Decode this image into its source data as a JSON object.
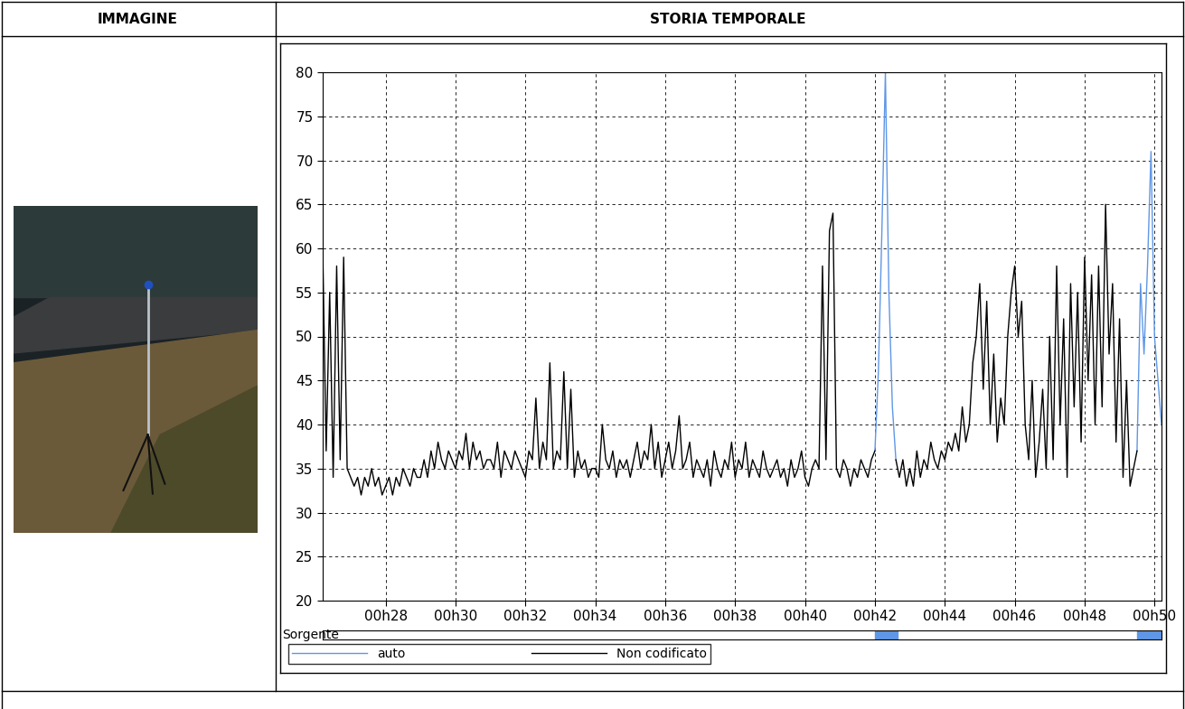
{
  "header": [
    "IMMAGINE",
    "STORIA TEMPORALE"
  ],
  "chart_data": {
    "type": "line",
    "x": [
      26.2,
      26.3,
      26.4,
      26.5,
      26.6,
      26.7,
      26.8,
      26.9,
      27.0,
      27.1,
      27.2,
      27.3,
      27.4,
      27.5,
      27.6,
      27.7,
      27.8,
      27.9,
      28.0,
      28.1,
      28.2,
      28.3,
      28.4,
      28.5,
      28.6,
      28.7,
      28.8,
      28.9,
      29.0,
      29.1,
      29.2,
      29.3,
      29.4,
      29.5,
      29.6,
      29.7,
      29.8,
      29.9,
      30.0,
      30.1,
      30.2,
      30.3,
      30.4,
      30.5,
      30.6,
      30.7,
      30.8,
      30.9,
      31.0,
      31.1,
      31.2,
      31.3,
      31.4,
      31.5,
      31.6,
      31.7,
      31.8,
      31.9,
      32.0,
      32.1,
      32.2,
      32.3,
      32.4,
      32.5,
      32.6,
      32.7,
      32.8,
      32.9,
      33.0,
      33.1,
      33.2,
      33.3,
      33.4,
      33.5,
      33.6,
      33.7,
      33.8,
      33.9,
      34.0,
      34.1,
      34.2,
      34.3,
      34.4,
      34.5,
      34.6,
      34.7,
      34.8,
      34.9,
      35.0,
      35.1,
      35.2,
      35.3,
      35.4,
      35.5,
      35.6,
      35.7,
      35.8,
      35.9,
      36.0,
      36.1,
      36.2,
      36.3,
      36.4,
      36.5,
      36.6,
      36.7,
      36.8,
      36.9,
      37.0,
      37.1,
      37.2,
      37.3,
      37.4,
      37.5,
      37.6,
      37.7,
      37.8,
      37.9,
      38.0,
      38.1,
      38.2,
      38.3,
      38.4,
      38.5,
      38.6,
      38.7,
      38.8,
      38.9,
      39.0,
      39.1,
      39.2,
      39.3,
      39.4,
      39.5,
      39.6,
      39.7,
      39.8,
      39.9,
      40.0,
      40.1,
      40.2,
      40.3,
      40.4,
      40.5,
      40.6,
      40.7,
      40.8,
      40.9,
      41.0,
      41.1,
      41.2,
      41.3,
      41.4,
      41.5,
      41.6,
      41.7,
      41.8,
      41.9,
      42.0,
      42.1,
      42.2,
      42.3,
      42.4,
      42.5,
      42.6,
      42.7,
      42.8,
      42.9,
      43.0,
      43.1,
      43.2,
      43.3,
      43.4,
      43.5,
      43.6,
      43.7,
      43.8,
      43.9,
      44.0,
      44.1,
      44.2,
      44.3,
      44.4,
      44.5,
      44.6,
      44.7,
      44.8,
      44.9,
      45.0,
      45.1,
      45.2,
      45.3,
      45.4,
      45.5,
      45.6,
      45.7,
      45.8,
      45.9,
      46.0,
      46.1,
      46.2,
      46.3,
      46.4,
      46.5,
      46.6,
      46.7,
      46.8,
      46.9,
      47.0,
      47.1,
      47.2,
      47.3,
      47.4,
      47.5,
      47.6,
      47.7,
      47.8,
      47.9,
      48.0,
      48.1,
      48.2,
      48.3,
      48.4,
      48.5,
      48.6,
      48.7,
      48.8,
      48.9,
      49.0,
      49.1,
      49.2,
      49.3,
      49.4,
      49.5,
      49.6,
      49.7,
      49.8,
      49.9,
      50.0,
      50.1,
      50.2
    ],
    "series": [
      {
        "name": "auto",
        "color": "#5f97e6",
        "values": [
          null,
          null,
          null,
          null,
          null,
          null,
          null,
          null,
          null,
          null,
          null,
          null,
          null,
          null,
          null,
          null,
          null,
          null,
          null,
          null,
          null,
          null,
          null,
          null,
          null,
          null,
          null,
          null,
          null,
          null,
          null,
          null,
          null,
          null,
          null,
          null,
          null,
          null,
          null,
          null,
          null,
          null,
          null,
          null,
          null,
          null,
          null,
          null,
          null,
          null,
          null,
          null,
          null,
          null,
          null,
          null,
          null,
          null,
          null,
          null,
          null,
          null,
          null,
          null,
          null,
          null,
          null,
          null,
          null,
          null,
          null,
          null,
          null,
          null,
          null,
          null,
          null,
          null,
          null,
          null,
          null,
          null,
          null,
          null,
          null,
          null,
          null,
          null,
          null,
          null,
          null,
          null,
          null,
          null,
          null,
          null,
          null,
          null,
          null,
          null,
          null,
          null,
          null,
          null,
          null,
          null,
          null,
          null,
          null,
          null,
          null,
          null,
          null,
          null,
          null,
          null,
          null,
          null,
          null,
          null,
          null,
          null,
          null,
          null,
          null,
          null,
          null,
          null,
          null,
          null,
          null,
          null,
          null,
          null,
          null,
          null,
          null,
          null,
          null,
          null,
          null,
          null,
          null,
          null,
          null,
          null,
          null,
          null,
          null,
          null,
          null,
          null,
          null,
          null,
          null,
          null,
          null,
          null,
          37,
          46,
          62,
          80,
          55,
          42,
          36,
          null,
          null,
          null,
          null,
          null,
          null,
          null,
          null,
          null,
          null,
          null,
          null,
          null,
          null,
          null,
          null,
          null,
          null,
          null,
          null,
          null,
          null,
          null,
          null,
          null,
          null,
          null,
          null,
          null,
          null,
          null,
          null,
          null,
          null,
          null,
          null,
          null,
          null,
          null,
          null,
          null,
          null,
          null,
          null,
          null,
          null,
          null,
          null,
          null,
          null,
          null,
          null,
          null,
          null,
          null,
          null,
          null,
          null,
          null,
          null,
          null,
          null,
          null,
          null,
          null,
          null,
          null,
          null,
          37,
          56,
          48,
          58,
          71,
          50,
          45,
          40
        ]
      },
      {
        "name": "Non codificato",
        "color": "#000000",
        "values": [
          60,
          37,
          55,
          34,
          58,
          36,
          59,
          35,
          34,
          33,
          34,
          32,
          34,
          33,
          35,
          33,
          34,
          32,
          33,
          34,
          32,
          34,
          33,
          35,
          34,
          33,
          35,
          34,
          34,
          36,
          34,
          37,
          35,
          38,
          36,
          35,
          37,
          36,
          35,
          37,
          36,
          39,
          35,
          38,
          36,
          37,
          35,
          36,
          36,
          35,
          38,
          34,
          37,
          36,
          35,
          37,
          36,
          35,
          34,
          37,
          36,
          43,
          35,
          38,
          36,
          47,
          35,
          37,
          36,
          46,
          35,
          44,
          34,
          37,
          35,
          36,
          34,
          35,
          35,
          34,
          40,
          36,
          35,
          37,
          34,
          36,
          35,
          36,
          34,
          36,
          38,
          35,
          37,
          36,
          40,
          35,
          38,
          34,
          36,
          38,
          35,
          37,
          41,
          35,
          36,
          38,
          34,
          36,
          35,
          34,
          36,
          33,
          37,
          35,
          34,
          36,
          35,
          38,
          34,
          36,
          35,
          38,
          34,
          36,
          35,
          34,
          37,
          35,
          34,
          35,
          36,
          34,
          35,
          33,
          36,
          34,
          35,
          37,
          34,
          33,
          35,
          36,
          35,
          58,
          36,
          62,
          64,
          35,
          34,
          36,
          35,
          33,
          35,
          34,
          36,
          35,
          34,
          36,
          37,
          null,
          null,
          null,
          null,
          null,
          36,
          34,
          36,
          33,
          35,
          33,
          37,
          34,
          36,
          35,
          38,
          36,
          35,
          37,
          36,
          38,
          37,
          39,
          37,
          42,
          38,
          40,
          47,
          50,
          56,
          44,
          54,
          40,
          48,
          38,
          43,
          40,
          50,
          55,
          58,
          50,
          54,
          40,
          36,
          45,
          34,
          38,
          44,
          35,
          50,
          36,
          58,
          40,
          52,
          34,
          56,
          42,
          55,
          38,
          59,
          45,
          57,
          40,
          58,
          42,
          65,
          48,
          56,
          38,
          52,
          34,
          45,
          33,
          35,
          37,
          null,
          null,
          null,
          null,
          null,
          null,
          null
        ]
      }
    ],
    "xlim": [
      26.2,
      50.2
    ],
    "xticks": [
      {
        "value": 28,
        "label": "00h28"
      },
      {
        "value": 30,
        "label": "00h30"
      },
      {
        "value": 32,
        "label": "00h32"
      },
      {
        "value": 34,
        "label": "00h34"
      },
      {
        "value": 36,
        "label": "00h36"
      },
      {
        "value": 38,
        "label": "00h38"
      },
      {
        "value": 40,
        "label": "00h40"
      },
      {
        "value": 42,
        "label": "00h42"
      },
      {
        "value": 44,
        "label": "00h44"
      },
      {
        "value": 46,
        "label": "00h46"
      },
      {
        "value": 48,
        "label": "00h48"
      },
      {
        "value": 50,
        "label": "00h50"
      }
    ],
    "ylim": [
      20,
      80
    ],
    "yticks": [
      20,
      25,
      30,
      35,
      40,
      45,
      50,
      55,
      60,
      65,
      70,
      75,
      80
    ],
    "grid": true,
    "legend": "lower left",
    "source_label": "Sorgente",
    "source_segments": [
      {
        "name": "auto",
        "start": 42.0,
        "end": 42.65
      },
      {
        "name": "auto",
        "start": 49.5,
        "end": 50.2
      }
    ]
  }
}
